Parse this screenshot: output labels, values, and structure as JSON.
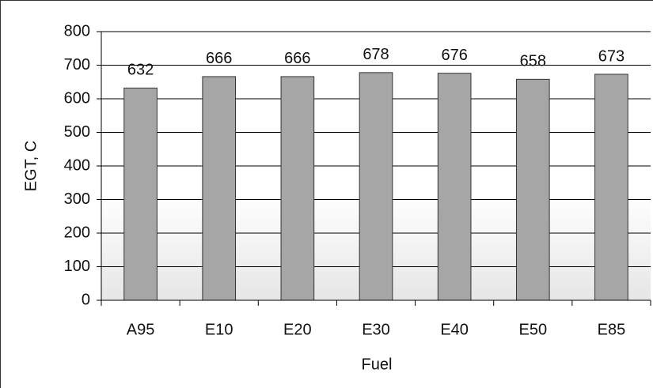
{
  "chart_data": {
    "type": "bar",
    "categories": [
      "A95",
      "E10",
      "E20",
      "E30",
      "E40",
      "E50",
      "E85"
    ],
    "values": [
      632,
      666,
      666,
      678,
      676,
      658,
      673
    ],
    "color": "#a6a6a6",
    "ylim": [
      0,
      800
    ],
    "yticks": [
      0,
      100,
      200,
      300,
      400,
      500,
      600,
      700,
      800
    ],
    "grid": true,
    "xlabel": "Fuel",
    "ylabel": "EGT, C"
  }
}
